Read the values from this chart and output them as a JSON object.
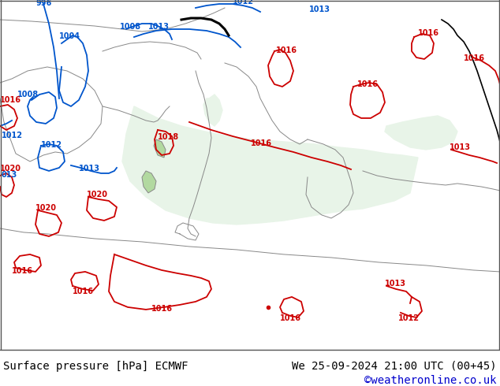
{
  "title_left": "Surface pressure [hPa] ECMWF",
  "title_right": "We 25-09-2024 21:00 UTC (00+45)",
  "copyright": "©weatheronline.co.uk",
  "land_color": "#b2d9a0",
  "sea_color": "#d8edd8",
  "med_color": "#e8f4e8",
  "footer_text_color": "#000000",
  "footer_copyright_color": "#0000cc",
  "blue": "#0055cc",
  "red": "#cc0000",
  "black": "#000000",
  "gray": "#888888",
  "font_size_footer": 10,
  "font_size_label": 7
}
